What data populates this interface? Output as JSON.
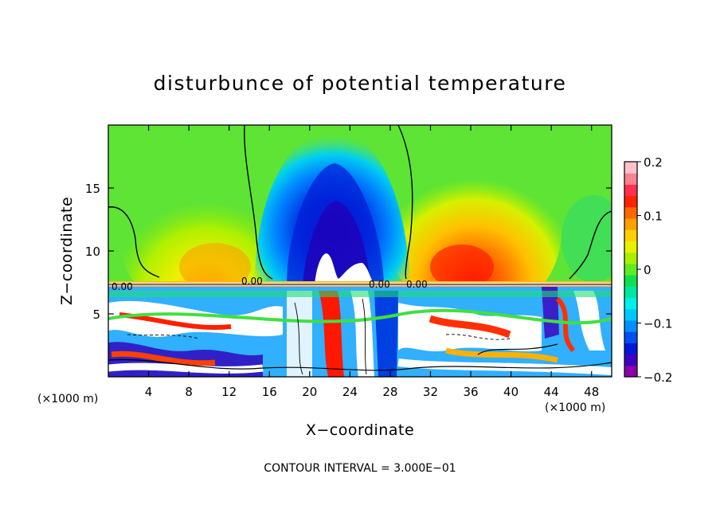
{
  "chart_data": {
    "type": "heatmap",
    "title": "disturbunce of potential temperature",
    "xlabel": "X−coordinate",
    "ylabel": "Z−coordinate",
    "x_unit_left": "(×1000 m)",
    "x_unit_right": "(×1000 m)",
    "footer": "CONTOUR INTERVAL = 3.000E−01",
    "xlim": [
      0,
      50
    ],
    "ylim": [
      0,
      20
    ],
    "x_ticks": [
      4,
      8,
      12,
      16,
      20,
      24,
      28,
      32,
      36,
      40,
      44,
      48
    ],
    "y_ticks": [
      5,
      10,
      15
    ],
    "colorbar": {
      "range": [
        -0.2,
        0.2
      ],
      "tick_values": [
        0.2,
        0.1,
        0,
        -0.1,
        -0.2
      ],
      "tick_labels": [
        "0.2",
        "0.1",
        "0",
        "−0.1",
        "−0.2"
      ],
      "colors": [
        "#8b00a8",
        "#4000c0",
        "#0018d8",
        "#0050f0",
        "#0090ff",
        "#00c8ff",
        "#00f0e8",
        "#00e8a0",
        "#10e050",
        "#60ec20",
        "#a8f000",
        "#e8f000",
        "#ffd000",
        "#ffa000",
        "#ff6800",
        "#ff2400",
        "#ff3050",
        "#ff8090",
        "#ffc0c8"
      ]
    },
    "contour_interval": 0.3,
    "contour_labels": [
      "0.00"
    ],
    "grid": false
  }
}
